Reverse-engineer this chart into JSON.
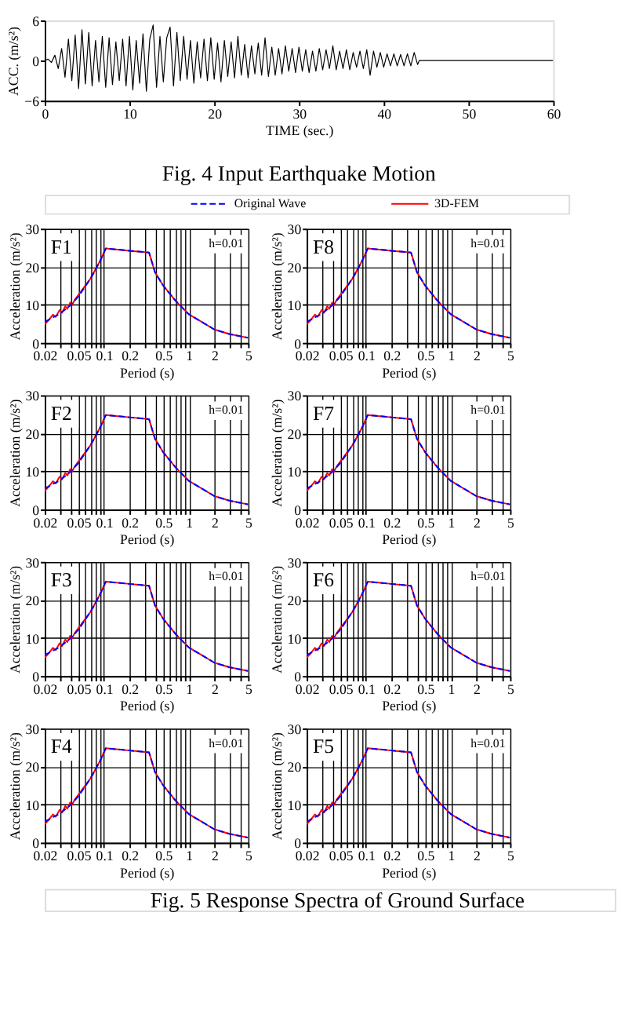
{
  "chart_data": [
    {
      "type": "line",
      "annotations": [
        "Fig. 4    Input Earthquake Motion"
      ],
      "xlabel": "TIME (sec.)",
      "ylabel": "ACC. (m/s²)",
      "xlim": [
        0,
        60
      ],
      "xticks": [
        0,
        10,
        20,
        30,
        40,
        50,
        60
      ],
      "ylim": [
        -6,
        6
      ],
      "yticks": [
        -6,
        0,
        6
      ],
      "grid": false,
      "legend": false,
      "series": [
        {
          "color": "#000000",
          "x": [
            0,
            0.4,
            0.8,
            1.2,
            1.6,
            2,
            2.4,
            2.8,
            3.2,
            3.6,
            4,
            4.4,
            4.8,
            5.2,
            5.6,
            6,
            6.4,
            6.8,
            7.2,
            7.6,
            8,
            8.4,
            8.8,
            9.2,
            9.6,
            10,
            10.4,
            10.8,
            11.2,
            11.6,
            12,
            12.4,
            12.8,
            13.2,
            13.6,
            14,
            14.4,
            14.8,
            15.2,
            15.6,
            16,
            16.4,
            16.8,
            17.2,
            17.6,
            18,
            18.4,
            18.8,
            19.2,
            19.6,
            20,
            20.4,
            20.8,
            21.2,
            21.6,
            22,
            22.4,
            22.8,
            23.2,
            23.6,
            24,
            24.4,
            24.8,
            25.2,
            25.6,
            26,
            26.4,
            26.8,
            27.2,
            27.6,
            28,
            28.4,
            28.8,
            29.2,
            29.6,
            30,
            30.4,
            30.8,
            31.2,
            31.6,
            32,
            32.4,
            32.8,
            33.2,
            33.6,
            34,
            34.4,
            34.8,
            35.2,
            35.6,
            36,
            36.4,
            36.8,
            37.2,
            37.6,
            38,
            38.4,
            38.8,
            39.2,
            39.6,
            40,
            40.4,
            40.8,
            41.2,
            41.6,
            42,
            42.4,
            42.8,
            43.2,
            43.6,
            44,
            44.2,
            60
          ],
          "values": [
            0,
            0.2,
            -0.3,
            0.8,
            -1.2,
            1.8,
            -2.5,
            3.2,
            -3,
            3.8,
            -4.2,
            4.6,
            -3.5,
            4.2,
            -3.8,
            3,
            -3.2,
            3.6,
            -4,
            3.4,
            -3.6,
            2.8,
            -3,
            3.2,
            -3.8,
            3.6,
            -4.4,
            3,
            -3.4,
            4,
            -4.6,
            3.2,
            5.3,
            -4,
            3.6,
            -3.2,
            3.4,
            5,
            -3.8,
            4.2,
            -3,
            3.6,
            -2.8,
            3,
            -3.4,
            2.8,
            -2.6,
            3.2,
            -3,
            3.4,
            -2.8,
            2.6,
            -3.2,
            3,
            -2.4,
            2.8,
            -2.6,
            3.6,
            -2.2,
            2.4,
            -2.6,
            2.2,
            -2,
            2.6,
            -2.2,
            3.4,
            -2.4,
            2,
            -2.2,
            1.8,
            -2,
            2.2,
            -1.6,
            1.8,
            -1.8,
            2,
            -1.6,
            1.6,
            -1.8,
            1.4,
            -1.6,
            1.8,
            -1.4,
            1.6,
            -1.2,
            2.2,
            -1.4,
            1.4,
            -1.2,
            1.6,
            -1.4,
            1.2,
            -1,
            1.4,
            -1.2,
            1.6,
            -2.2,
            1.4,
            -1,
            1.2,
            -1,
            1,
            -0.8,
            1,
            -0.8,
            0.9,
            -0.8,
            1,
            -0.8,
            1.2,
            -0.6,
            0,
            0
          ]
        }
      ]
    },
    {
      "type": "line",
      "annotations": [
        "F1",
        "h=0.01"
      ],
      "xlabel": "Period (s)",
      "ylabel": "Acceleration (m/s²)",
      "log": "x",
      "xlim": [
        0.02,
        5
      ],
      "xticks": [
        0.02,
        {
          "value": 0.03,
          "label": null
        },
        {
          "value": 0.04,
          "label": null
        },
        0.05,
        {
          "value": 0.06,
          "label": null
        },
        {
          "value": 0.07,
          "label": null
        },
        {
          "value": 0.08,
          "label": null
        },
        {
          "value": 0.09,
          "label": null
        },
        0.1,
        0.2,
        {
          "value": 0.3,
          "label": null
        },
        {
          "value": 0.4,
          "label": null
        },
        0.5,
        {
          "value": 0.6,
          "label": null
        },
        {
          "value": 0.7,
          "label": null
        },
        {
          "value": 0.8,
          "label": null
        },
        {
          "value": 0.9,
          "label": null
        },
        1,
        2,
        {
          "value": 3,
          "label": null
        },
        {
          "value": 4,
          "label": null
        },
        5
      ],
      "ylim": [
        0,
        30
      ],
      "yticks": [
        0,
        10,
        20,
        30
      ],
      "grid": true,
      "legend": "top",
      "series": [
        {
          "name": "Original Wave",
          "color": "#0000ff",
          "line_style": "dashed",
          "x": [
            0.02,
            0.03,
            0.04,
            0.05,
            0.07,
            0.09,
            0.105,
            0.2,
            0.34,
            0.4,
            0.5,
            0.7,
            1,
            2,
            3,
            5
          ],
          "values": [
            5.5,
            7.6,
            9.8,
            12.2,
            17,
            21.5,
            24.8,
            24.2,
            23.7,
            18.5,
            15,
            11,
            7.5,
            3.5,
            2.3,
            1.3
          ]
        },
        {
          "name": "3D-FEM",
          "color": "#ff0000",
          "line_style": "solid",
          "x": [
            0.02,
            0.022,
            0.025,
            0.027,
            0.03,
            0.032,
            0.035,
            0.037,
            0.04,
            0.042,
            0.045,
            0.05,
            0.07,
            0.09,
            0.105,
            0.2,
            0.34,
            0.4,
            0.5,
            0.7,
            1,
            2,
            3,
            5
          ],
          "values": [
            4.8,
            5.8,
            7.4,
            6.8,
            8.6,
            7.9,
            9.6,
            8.9,
            10.6,
            9.9,
            11.2,
            12.6,
            17,
            21.5,
            24.8,
            24.2,
            23.7,
            18.5,
            15,
            11,
            7.5,
            3.5,
            2.3,
            1.3
          ]
        }
      ]
    },
    {
      "type": "line",
      "annotations": [
        "F8",
        "h=0.01"
      ],
      "xlabel": "Period (s)",
      "ylabel": "Acceleration (m/s²)",
      "log": "x",
      "xlim": [
        0.02,
        5
      ],
      "xticks": [
        0.02,
        {
          "value": 0.03,
          "label": null
        },
        {
          "value": 0.04,
          "label": null
        },
        0.05,
        {
          "value": 0.06,
          "label": null
        },
        {
          "value": 0.07,
          "label": null
        },
        {
          "value": 0.08,
          "label": null
        },
        {
          "value": 0.09,
          "label": null
        },
        0.1,
        0.2,
        {
          "value": 0.3,
          "label": null
        },
        {
          "value": 0.4,
          "label": null
        },
        0.5,
        {
          "value": 0.6,
          "label": null
        },
        {
          "value": 0.7,
          "label": null
        },
        {
          "value": 0.8,
          "label": null
        },
        {
          "value": 0.9,
          "label": null
        },
        1,
        2,
        {
          "value": 3,
          "label": null
        },
        {
          "value": 4,
          "label": null
        },
        5
      ],
      "ylim": [
        0,
        30
      ],
      "yticks": [
        0,
        10,
        20,
        30
      ],
      "grid": true,
      "series": [
        {
          "color": "#0000ff",
          "line_style": "dashed",
          "x": [
            0.02,
            0.03,
            0.04,
            0.05,
            0.07,
            0.09,
            0.105,
            0.2,
            0.34,
            0.4,
            0.5,
            0.7,
            1,
            2,
            3,
            5
          ],
          "values": [
            5.5,
            7.6,
            9.8,
            12.2,
            17,
            21.5,
            24.8,
            24.2,
            23.7,
            18.5,
            15,
            11,
            7.5,
            3.5,
            2.3,
            1.3
          ]
        },
        {
          "color": "#ff0000",
          "line_style": "solid",
          "x": [
            0.02,
            0.022,
            0.025,
            0.027,
            0.03,
            0.032,
            0.035,
            0.037,
            0.04,
            0.042,
            0.045,
            0.05,
            0.07,
            0.09,
            0.105,
            0.2,
            0.34,
            0.4,
            0.5,
            0.7,
            1,
            2,
            3,
            5
          ],
          "values": [
            4.8,
            5.8,
            7.4,
            6.8,
            8.6,
            7.9,
            9.6,
            8.9,
            10.6,
            9.9,
            11.2,
            12.6,
            17,
            21.5,
            24.8,
            24.2,
            23.7,
            18.5,
            15,
            11,
            7.5,
            3.5,
            2.3,
            1.3
          ]
        }
      ]
    },
    {
      "type": "line",
      "annotations": [
        "F2",
        "h=0.01"
      ],
      "xlabel": "Period (s)",
      "ylabel": "Acceleration (m/s²)",
      "log": "x",
      "xlim": [
        0.02,
        5
      ],
      "xticks": [
        0.02,
        {
          "value": 0.03,
          "label": null
        },
        {
          "value": 0.04,
          "label": null
        },
        0.05,
        {
          "value": 0.06,
          "label": null
        },
        {
          "value": 0.07,
          "label": null
        },
        {
          "value": 0.08,
          "label": null
        },
        {
          "value": 0.09,
          "label": null
        },
        0.1,
        0.2,
        {
          "value": 0.3,
          "label": null
        },
        {
          "value": 0.4,
          "label": null
        },
        0.5,
        {
          "value": 0.6,
          "label": null
        },
        {
          "value": 0.7,
          "label": null
        },
        {
          "value": 0.8,
          "label": null
        },
        {
          "value": 0.9,
          "label": null
        },
        1,
        2,
        {
          "value": 3,
          "label": null
        },
        {
          "value": 4,
          "label": null
        },
        5
      ],
      "ylim": [
        0,
        30
      ],
      "yticks": [
        0,
        10,
        20,
        30
      ],
      "grid": true,
      "series": [
        {
          "color": "#0000ff",
          "line_style": "dashed",
          "x": [
            0.02,
            0.03,
            0.04,
            0.05,
            0.07,
            0.09,
            0.105,
            0.2,
            0.34,
            0.4,
            0.5,
            0.7,
            1,
            2,
            3,
            5
          ],
          "values": [
            5.5,
            7.6,
            9.8,
            12.2,
            17,
            21.5,
            24.8,
            24.2,
            23.7,
            18.5,
            15,
            11,
            7.5,
            3.5,
            2.3,
            1.3
          ]
        },
        {
          "color": "#ff0000",
          "line_style": "solid",
          "x": [
            0.02,
            0.022,
            0.025,
            0.027,
            0.03,
            0.032,
            0.035,
            0.037,
            0.04,
            0.042,
            0.045,
            0.05,
            0.07,
            0.09,
            0.105,
            0.2,
            0.34,
            0.4,
            0.5,
            0.7,
            1,
            2,
            3,
            5
          ],
          "values": [
            4.8,
            5.8,
            7.4,
            6.8,
            8.6,
            7.9,
            9.6,
            8.9,
            10.6,
            9.9,
            11.2,
            12.6,
            17,
            21.5,
            24.8,
            24.2,
            23.7,
            18.5,
            15,
            11,
            7.5,
            3.5,
            2.3,
            1.3
          ]
        }
      ]
    },
    {
      "type": "line",
      "annotations": [
        "F7",
        "h=0.01"
      ],
      "xlabel": "Period (s)",
      "ylabel": "Acceleration (m/s²)",
      "log": "x",
      "xlim": [
        0.02,
        5
      ],
      "xticks": [
        0.02,
        {
          "value": 0.03,
          "label": null
        },
        {
          "value": 0.04,
          "label": null
        },
        0.05,
        {
          "value": 0.06,
          "label": null
        },
        {
          "value": 0.07,
          "label": null
        },
        {
          "value": 0.08,
          "label": null
        },
        {
          "value": 0.09,
          "label": null
        },
        0.1,
        0.2,
        {
          "value": 0.3,
          "label": null
        },
        {
          "value": 0.4,
          "label": null
        },
        0.5,
        {
          "value": 0.6,
          "label": null
        },
        {
          "value": 0.7,
          "label": null
        },
        {
          "value": 0.8,
          "label": null
        },
        {
          "value": 0.9,
          "label": null
        },
        1,
        2,
        {
          "value": 3,
          "label": null
        },
        {
          "value": 4,
          "label": null
        },
        5
      ],
      "ylim": [
        0,
        30
      ],
      "yticks": [
        0,
        10,
        20,
        30
      ],
      "grid": true,
      "series": [
        {
          "color": "#0000ff",
          "line_style": "dashed",
          "x": [
            0.02,
            0.03,
            0.04,
            0.05,
            0.07,
            0.09,
            0.105,
            0.2,
            0.34,
            0.4,
            0.5,
            0.7,
            1,
            2,
            3,
            5
          ],
          "values": [
            5.5,
            7.6,
            9.8,
            12.2,
            17,
            21.5,
            24.8,
            24.2,
            23.7,
            18.5,
            15,
            11,
            7.5,
            3.5,
            2.3,
            1.3
          ]
        },
        {
          "color": "#ff0000",
          "line_style": "solid",
          "x": [
            0.02,
            0.022,
            0.025,
            0.027,
            0.03,
            0.032,
            0.035,
            0.037,
            0.04,
            0.042,
            0.045,
            0.05,
            0.07,
            0.09,
            0.105,
            0.2,
            0.34,
            0.4,
            0.5,
            0.7,
            1,
            2,
            3,
            5
          ],
          "values": [
            4.8,
            5.8,
            7.4,
            6.8,
            8.6,
            7.9,
            9.6,
            8.9,
            10.6,
            9.9,
            11.2,
            12.6,
            17,
            21.5,
            24.8,
            24.2,
            23.7,
            18.5,
            15,
            11,
            7.5,
            3.5,
            2.3,
            1.3
          ]
        }
      ]
    },
    {
      "type": "line",
      "annotations": [
        "F3",
        "h=0.01"
      ],
      "xlabel": "Period (s)",
      "ylabel": "Acceleration (m/s²)",
      "log": "x",
      "xlim": [
        0.02,
        5
      ],
      "xticks": [
        0.02,
        {
          "value": 0.03,
          "label": null
        },
        {
          "value": 0.04,
          "label": null
        },
        0.05,
        {
          "value": 0.06,
          "label": null
        },
        {
          "value": 0.07,
          "label": null
        },
        {
          "value": 0.08,
          "label": null
        },
        {
          "value": 0.09,
          "label": null
        },
        0.1,
        0.2,
        {
          "value": 0.3,
          "label": null
        },
        {
          "value": 0.4,
          "label": null
        },
        0.5,
        {
          "value": 0.6,
          "label": null
        },
        {
          "value": 0.7,
          "label": null
        },
        {
          "value": 0.8,
          "label": null
        },
        {
          "value": 0.9,
          "label": null
        },
        1,
        2,
        {
          "value": 3,
          "label": null
        },
        {
          "value": 4,
          "label": null
        },
        5
      ],
      "ylim": [
        0,
        30
      ],
      "yticks": [
        0,
        10,
        20,
        30
      ],
      "grid": true,
      "series": [
        {
          "color": "#0000ff",
          "line_style": "dashed",
          "x": [
            0.02,
            0.03,
            0.04,
            0.05,
            0.07,
            0.09,
            0.105,
            0.2,
            0.34,
            0.4,
            0.5,
            0.7,
            1,
            2,
            3,
            5
          ],
          "values": [
            5.5,
            7.6,
            9.8,
            12.2,
            17,
            21.5,
            24.8,
            24.2,
            23.7,
            18.5,
            15,
            11,
            7.5,
            3.5,
            2.3,
            1.3
          ]
        },
        {
          "color": "#ff0000",
          "line_style": "solid",
          "x": [
            0.02,
            0.022,
            0.025,
            0.027,
            0.03,
            0.032,
            0.035,
            0.037,
            0.04,
            0.042,
            0.045,
            0.05,
            0.07,
            0.09,
            0.105,
            0.2,
            0.34,
            0.4,
            0.5,
            0.7,
            1,
            2,
            3,
            5
          ],
          "values": [
            4.8,
            5.8,
            7.4,
            6.8,
            8.6,
            7.9,
            9.6,
            8.9,
            10.6,
            9.9,
            11.2,
            12.6,
            17,
            21.5,
            24.8,
            24.2,
            23.7,
            18.5,
            15,
            11,
            7.5,
            3.5,
            2.3,
            1.3
          ]
        }
      ]
    },
    {
      "type": "line",
      "annotations": [
        "F6",
        "h=0.01"
      ],
      "xlabel": "Period (s)",
      "ylabel": "Acceleration (m/s²)",
      "log": "x",
      "xlim": [
        0.02,
        5
      ],
      "xticks": [
        0.02,
        {
          "value": 0.03,
          "label": null
        },
        {
          "value": 0.04,
          "label": null
        },
        0.05,
        {
          "value": 0.06,
          "label": null
        },
        {
          "value": 0.07,
          "label": null
        },
        {
          "value": 0.08,
          "label": null
        },
        {
          "value": 0.09,
          "label": null
        },
        0.1,
        0.2,
        {
          "value": 0.3,
          "label": null
        },
        {
          "value": 0.4,
          "label": null
        },
        0.5,
        {
          "value": 0.6,
          "label": null
        },
        {
          "value": 0.7,
          "label": null
        },
        {
          "value": 0.8,
          "label": null
        },
        {
          "value": 0.9,
          "label": null
        },
        1,
        2,
        {
          "value": 3,
          "label": null
        },
        {
          "value": 4,
          "label": null
        },
        5
      ],
      "ylim": [
        0,
        30
      ],
      "yticks": [
        0,
        10,
        20,
        30
      ],
      "grid": true,
      "series": [
        {
          "color": "#0000ff",
          "line_style": "dashed",
          "x": [
            0.02,
            0.03,
            0.04,
            0.05,
            0.07,
            0.09,
            0.105,
            0.2,
            0.34,
            0.4,
            0.5,
            0.7,
            1,
            2,
            3,
            5
          ],
          "values": [
            5.5,
            7.6,
            9.8,
            12.2,
            17,
            21.5,
            24.8,
            24.2,
            23.7,
            18.5,
            15,
            11,
            7.5,
            3.5,
            2.3,
            1.3
          ]
        },
        {
          "color": "#ff0000",
          "line_style": "solid",
          "x": [
            0.02,
            0.022,
            0.025,
            0.027,
            0.03,
            0.032,
            0.035,
            0.037,
            0.04,
            0.042,
            0.045,
            0.05,
            0.07,
            0.09,
            0.105,
            0.2,
            0.34,
            0.4,
            0.5,
            0.7,
            1,
            2,
            3,
            5
          ],
          "values": [
            4.8,
            5.8,
            7.4,
            6.8,
            8.6,
            7.9,
            9.6,
            8.9,
            10.6,
            9.9,
            11.2,
            12.6,
            17,
            21.5,
            24.8,
            24.2,
            23.7,
            18.5,
            15,
            11,
            7.5,
            3.5,
            2.3,
            1.3
          ]
        }
      ]
    },
    {
      "type": "line",
      "annotations": [
        "F4",
        "h=0.01"
      ],
      "xlabel": "Period (s)",
      "ylabel": "Acceleration (m/s²)",
      "log": "x",
      "xlim": [
        0.02,
        5
      ],
      "xticks": [
        0.02,
        {
          "value": 0.03,
          "label": null
        },
        {
          "value": 0.04,
          "label": null
        },
        0.05,
        {
          "value": 0.06,
          "label": null
        },
        {
          "value": 0.07,
          "label": null
        },
        {
          "value": 0.08,
          "label": null
        },
        {
          "value": 0.09,
          "label": null
        },
        0.1,
        0.2,
        {
          "value": 0.3,
          "label": null
        },
        {
          "value": 0.4,
          "label": null
        },
        0.5,
        {
          "value": 0.6,
          "label": null
        },
        {
          "value": 0.7,
          "label": null
        },
        {
          "value": 0.8,
          "label": null
        },
        {
          "value": 0.9,
          "label": null
        },
        1,
        2,
        {
          "value": 3,
          "label": null
        },
        {
          "value": 4,
          "label": null
        },
        5
      ],
      "ylim": [
        0,
        30
      ],
      "yticks": [
        0,
        10,
        20,
        30
      ],
      "grid": true,
      "series": [
        {
          "color": "#0000ff",
          "line_style": "dashed",
          "x": [
            0.02,
            0.03,
            0.04,
            0.05,
            0.07,
            0.09,
            0.105,
            0.2,
            0.34,
            0.4,
            0.5,
            0.7,
            1,
            2,
            3,
            5
          ],
          "values": [
            5.5,
            7.6,
            9.8,
            12.2,
            17,
            21.5,
            24.8,
            24.2,
            23.7,
            18.5,
            15,
            11,
            7.5,
            3.5,
            2.3,
            1.3
          ]
        },
        {
          "color": "#ff0000",
          "line_style": "solid",
          "x": [
            0.02,
            0.022,
            0.025,
            0.027,
            0.03,
            0.032,
            0.035,
            0.037,
            0.04,
            0.042,
            0.045,
            0.05,
            0.07,
            0.09,
            0.105,
            0.2,
            0.34,
            0.4,
            0.5,
            0.7,
            1,
            2,
            3,
            5
          ],
          "values": [
            4.8,
            5.8,
            7.4,
            6.8,
            8.6,
            7.9,
            9.6,
            8.9,
            10.6,
            9.9,
            11.2,
            12.6,
            17,
            21.5,
            24.8,
            24.2,
            23.7,
            18.5,
            15,
            11,
            7.5,
            3.5,
            2.3,
            1.3
          ]
        }
      ]
    },
    {
      "type": "line",
      "annotations": [
        "F5",
        "h=0.01",
        "Fig. 5    Response Spectra of Ground Surface"
      ],
      "xlabel": "Period (s)",
      "ylabel": "Acceleration (m/s²)",
      "log": "x",
      "xlim": [
        0.02,
        5
      ],
      "xticks": [
        0.02,
        {
          "value": 0.03,
          "label": null
        },
        {
          "value": 0.04,
          "label": null
        },
        0.05,
        {
          "value": 0.06,
          "label": null
        },
        {
          "value": 0.07,
          "label": null
        },
        {
          "value": 0.08,
          "label": null
        },
        {
          "value": 0.09,
          "label": null
        },
        0.1,
        0.2,
        {
          "value": 0.3,
          "label": null
        },
        {
          "value": 0.4,
          "label": null
        },
        0.5,
        {
          "value": 0.6,
          "label": null
        },
        {
          "value": 0.7,
          "label": null
        },
        {
          "value": 0.8,
          "label": null
        },
        {
          "value": 0.9,
          "label": null
        },
        1,
        2,
        {
          "value": 3,
          "label": null
        },
        {
          "value": 4,
          "label": null
        },
        5
      ],
      "ylim": [
        0,
        30
      ],
      "yticks": [
        0,
        10,
        20,
        30
      ],
      "grid": true,
      "series": [
        {
          "color": "#0000ff",
          "line_style": "dashed",
          "x": [
            0.02,
            0.03,
            0.04,
            0.05,
            0.07,
            0.09,
            0.105,
            0.2,
            0.34,
            0.4,
            0.5,
            0.7,
            1,
            2,
            3,
            5
          ],
          "values": [
            5.5,
            7.6,
            9.8,
            12.2,
            17,
            21.5,
            24.8,
            24.2,
            23.7,
            18.5,
            15,
            11,
            7.5,
            3.5,
            2.3,
            1.3
          ]
        },
        {
          "color": "#ff0000",
          "line_style": "solid",
          "x": [
            0.02,
            0.022,
            0.025,
            0.027,
            0.03,
            0.032,
            0.035,
            0.037,
            0.04,
            0.042,
            0.045,
            0.05,
            0.07,
            0.09,
            0.105,
            0.2,
            0.34,
            0.4,
            0.5,
            0.7,
            1,
            2,
            3,
            5
          ],
          "values": [
            4.8,
            5.8,
            7.4,
            6.8,
            8.6,
            7.9,
            9.6,
            8.9,
            10.6,
            9.9,
            11.2,
            12.6,
            17,
            21.5,
            24.8,
            24.2,
            23.7,
            18.5,
            15,
            11,
            7.5,
            3.5,
            2.3,
            1.3
          ]
        }
      ]
    }
  ]
}
